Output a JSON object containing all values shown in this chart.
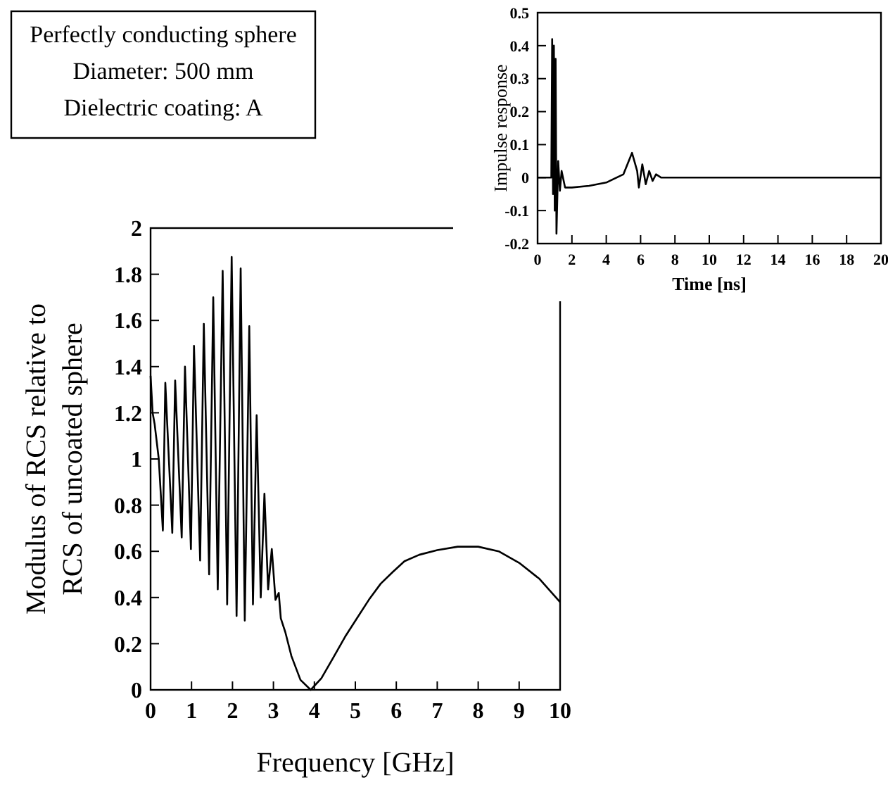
{
  "chart_data": [
    {
      "type": "line",
      "xlabel": "Frequency  [GHz]",
      "ylabel": "Modulus of RCS relative to\nRCS of uncoated sphere",
      "annotations": [
        "Perfectly conducting sphere",
        "Diameter: 500 mm",
        "Dielectric coating: A"
      ],
      "xlim": [
        0,
        10
      ],
      "ylim": [
        0,
        2
      ],
      "xticks": [
        0,
        1,
        2,
        3,
        4,
        5,
        6,
        7,
        8,
        9,
        10
      ],
      "yticks": [
        0,
        0.2,
        0.4,
        0.6,
        0.8,
        1,
        1.2,
        1.4,
        1.6,
        1.8,
        2
      ],
      "grid": false,
      "marker": "none",
      "line_style": "solid",
      "series": [
        {
          "color": "#000000",
          "x": [
            0,
            0.05,
            0.1,
            0.2,
            0.3,
            0.36,
            0.53,
            0.6,
            0.76,
            0.84,
            0.985,
            1.06,
            1.21,
            1.3,
            1.43,
            1.53,
            1.64,
            1.76,
            1.87,
            1.98,
            2.1,
            2.2,
            2.3,
            2.41,
            2.5,
            2.59,
            2.69,
            2.78,
            2.87,
            2.96,
            3.05,
            3.13,
            3.18,
            3.29,
            3.44,
            3.66,
            3.91,
            4.17,
            4.45,
            4.75,
            5.04,
            5.33,
            5.62,
            5.91,
            6.2,
            6.56,
            7,
            7.5,
            8,
            8.5,
            9,
            9.5,
            10
          ],
          "values": [
            1.36,
            1.2,
            1.15,
            1.0,
            0.69,
            1.33,
            0.68,
            1.34,
            0.66,
            1.4,
            0.61,
            1.49,
            0.56,
            1.585,
            0.5,
            1.7,
            0.435,
            1.815,
            0.37,
            1.875,
            0.32,
            1.825,
            0.3,
            1.575,
            0.37,
            1.19,
            0.4,
            0.85,
            0.435,
            0.61,
            0.39,
            0.42,
            0.31,
            0.25,
            0.146,
            0.043,
            0,
            0.05,
            0.136,
            0.23,
            0.31,
            0.39,
            0.46,
            0.51,
            0.557,
            0.585,
            0.605,
            0.62,
            0.62,
            0.6,
            0.55,
            0.48,
            0.38
          ]
        }
      ]
    },
    {
      "type": "line",
      "xlabel": "Time  [ns]",
      "ylabel": "Impulse response",
      "xlim": [
        0,
        20
      ],
      "ylim": [
        -0.2,
        0.5
      ],
      "xticks": [
        0,
        2,
        4,
        6,
        8,
        10,
        12,
        14,
        16,
        18,
        20
      ],
      "yticks": [
        -0.2,
        -0.1,
        0,
        0.1,
        0.2,
        0.3,
        0.4,
        0.5
      ],
      "grid": false,
      "marker": "none",
      "line_style": "solid",
      "series": [
        {
          "color": "#000000",
          "x": [
            0,
            0.8,
            0.85,
            0.9,
            0.95,
            1.0,
            1.05,
            1.1,
            1.2,
            1.3,
            1.4,
            1.6,
            2,
            3,
            4,
            5,
            5.5,
            5.8,
            5.9,
            6.1,
            6.3,
            6.5,
            6.7,
            6.9,
            7.2,
            20
          ],
          "values": [
            0,
            0,
            0.42,
            -0.05,
            0.4,
            -0.1,
            0.36,
            -0.17,
            0.05,
            -0.04,
            0.02,
            -0.03,
            -0.03,
            -0.025,
            -0.015,
            0.01,
            0.075,
            0.02,
            -0.03,
            0.04,
            -0.02,
            0.02,
            -0.01,
            0.01,
            0,
            0
          ]
        }
      ]
    }
  ]
}
